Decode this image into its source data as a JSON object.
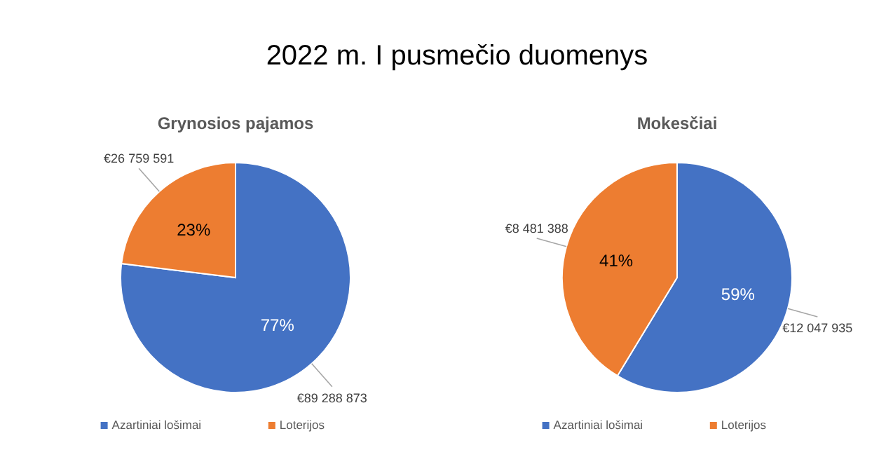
{
  "chart_data": [
    {
      "type": "pie",
      "title": "Grynosios pajamos",
      "categories": [
        "Azartiniai lošimai",
        "Loterijos"
      ],
      "values": [
        89288873,
        26759591
      ],
      "colors": [
        "#4472c4",
        "#ed7d31"
      ],
      "value_labels": [
        "€89 288 873",
        "€26 759 591"
      ],
      "annotations": [
        "2022 m. I pusmečio duomenys",
        {
          "text": "77%",
          "x": "Azartiniai lošimai"
        },
        {
          "text": "23%",
          "x": "Loterijos"
        }
      ],
      "legend": "bottom"
    },
    {
      "type": "pie",
      "title": "Mokesčiai",
      "categories": [
        "Azartiniai lošimai",
        "Loterijos"
      ],
      "values": [
        12047935,
        8481388
      ],
      "colors": [
        "#4472c4",
        "#ed7d31"
      ],
      "value_labels": [
        "€12 047 935",
        "€8 481 388"
      ],
      "annotations": [
        {
          "text": "59%",
          "x": "Azartiniai lošimai"
        },
        {
          "text": "41%",
          "x": "Loterijos"
        }
      ],
      "legend": "bottom"
    }
  ]
}
